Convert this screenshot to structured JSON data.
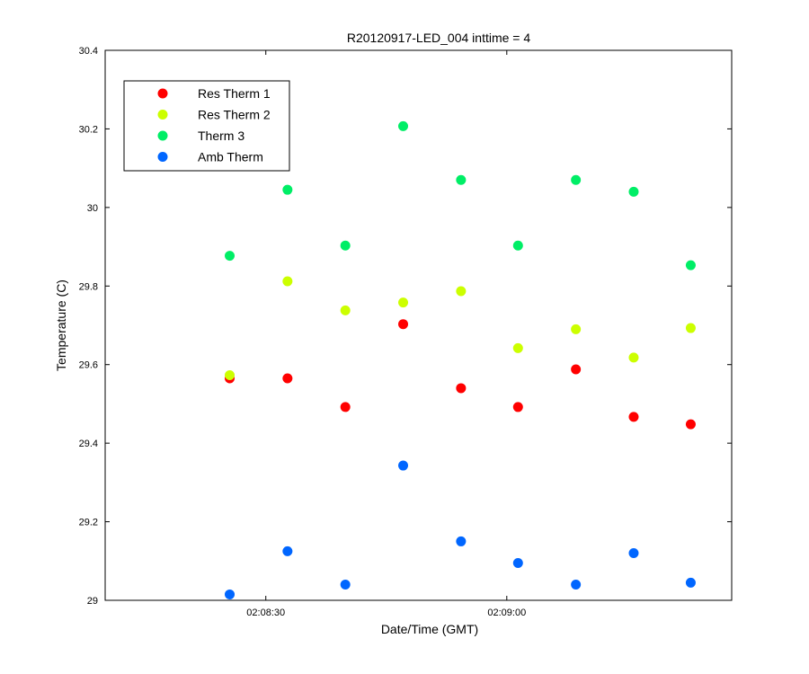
{
  "chart_data": {
    "type": "scatter",
    "title": "R20120917-LED_004 inttime = 4",
    "xlabel": "Date/Time (GMT)",
    "ylabel": "Temperature (C)",
    "xlim": [
      "02:08:10",
      "02:09:28"
    ],
    "ylim": [
      29,
      30.4
    ],
    "x_ticks": [
      "02:08:30",
      "02:09:00"
    ],
    "y_ticks": [
      "29",
      "29.2",
      "29.4",
      "29.6",
      "29.8",
      "30",
      "30.2",
      "30.4"
    ],
    "grid": false,
    "legend_position": "top-left",
    "x": [
      "02:08:25.5",
      "02:08:32.7",
      "02:08:39.9",
      "02:08:47.1",
      "02:08:54.3",
      "02:09:01.4",
      "02:09:08.6",
      "02:09:15.8",
      "02:09:22.9"
    ],
    "series": [
      {
        "name": "Res Therm 1",
        "color": "#ff0000",
        "values": [
          29.565,
          29.565,
          29.492,
          29.703,
          29.54,
          29.492,
          29.588,
          29.467,
          29.448
        ]
      },
      {
        "name": "Res Therm 2",
        "color": "#ccff00",
        "values": [
          29.573,
          29.812,
          29.738,
          29.758,
          29.787,
          29.642,
          29.69,
          29.618,
          29.693
        ]
      },
      {
        "name": "Therm 3",
        "color": "#00ee66",
        "values": [
          29.877,
          30.045,
          29.903,
          30.207,
          30.07,
          29.903,
          30.07,
          30.04,
          29.853
        ]
      },
      {
        "name": "Amb Therm",
        "color": "#0066ff",
        "values": [
          29.015,
          29.125,
          29.04,
          29.343,
          29.15,
          29.095,
          29.04,
          29.12,
          29.045
        ]
      }
    ]
  }
}
